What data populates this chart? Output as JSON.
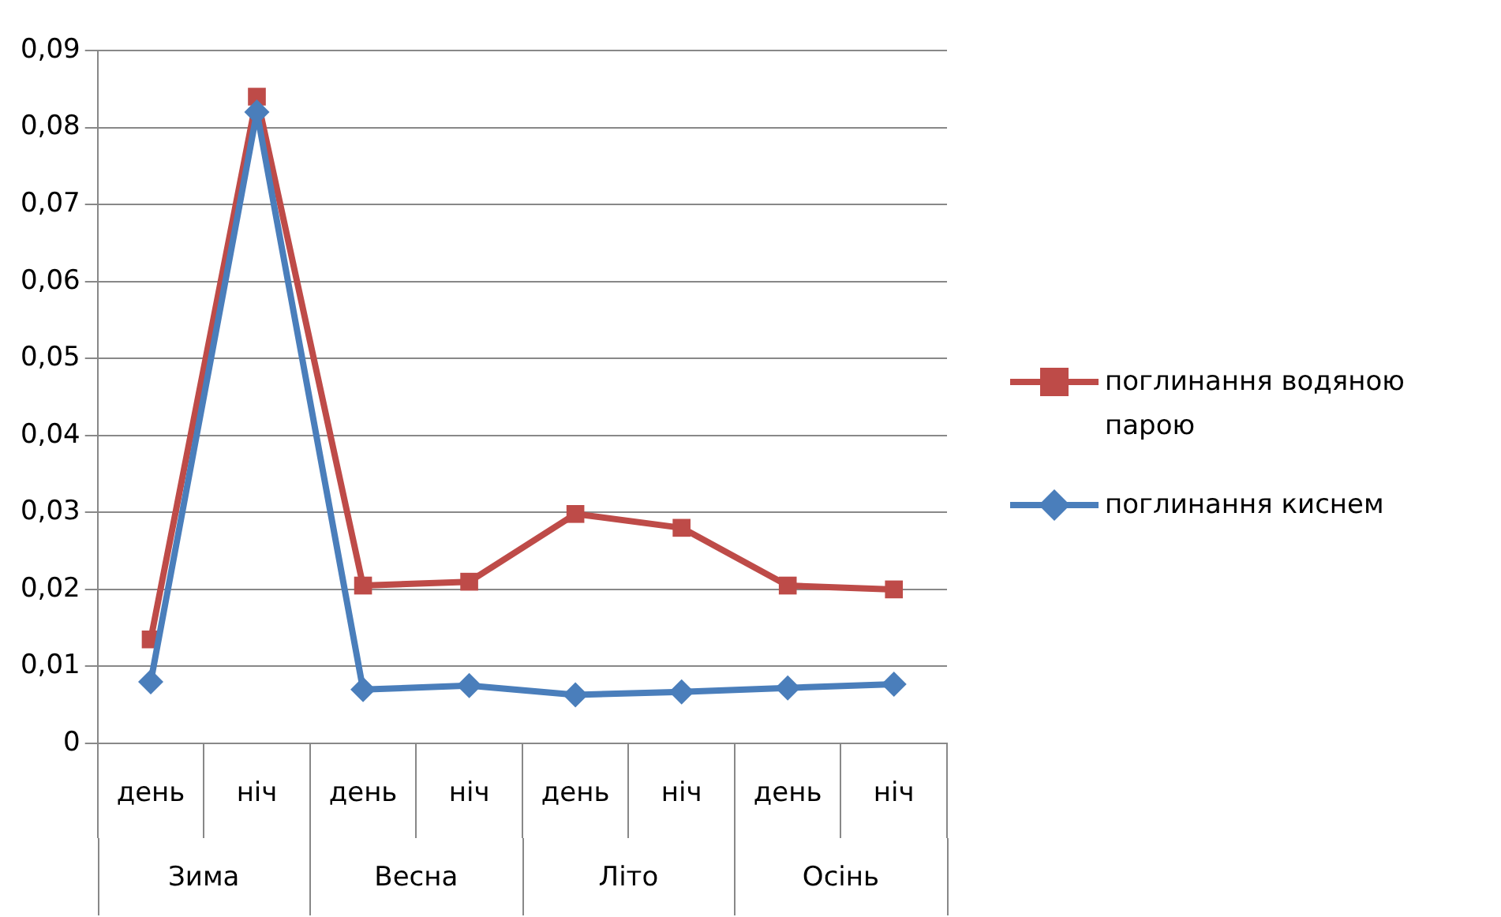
{
  "chart_data": {
    "type": "line",
    "categories": [
      "день",
      "ніч",
      "день",
      "ніч",
      "день",
      "ніч",
      "день",
      "ніч"
    ],
    "series": [
      {
        "name": "поглинання водяною парою",
        "color": "#be4b48",
        "marker": "square",
        "values": [
          0.0135,
          0.084,
          0.0205,
          0.021,
          0.0298,
          0.028,
          0.0205,
          0.02
        ]
      },
      {
        "name": "поглинання киснем",
        "color": "#4a7ebb",
        "marker": "diamond",
        "values": [
          0.008,
          0.082,
          0.007,
          0.0075,
          0.0063,
          0.0067,
          0.0072,
          0.0077
        ]
      }
    ],
    "ylim": [
      0,
      0.09
    ],
    "yticks": [
      0,
      {
        "value": 0.01,
        "label": "0,01"
      },
      {
        "value": 0.02,
        "label": "0,02"
      },
      {
        "value": 0.03,
        "label": "0,03"
      },
      {
        "value": 0.04,
        "label": "0,04"
      },
      {
        "value": 0.05,
        "label": "0,05"
      },
      {
        "value": 0.06,
        "label": "0,06"
      },
      {
        "value": 0.07,
        "label": "0,07"
      },
      {
        "value": 0.08,
        "label": "0,08"
      },
      {
        "value": 0.09,
        "label": "0,09"
      }
    ],
    "annotations": [
      "Зима",
      "Весна",
      "Літо",
      "Осінь"
    ],
    "grid": "y",
    "legend": "right",
    "line_style": "solid"
  }
}
